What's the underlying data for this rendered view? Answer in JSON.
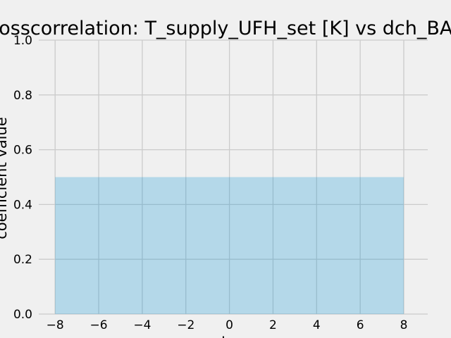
{
  "chart_data": {
    "type": "area",
    "title": "Crosscorrelation: T_supply_UFH_set [K] vs dch_BAT [W]",
    "xlabel": "lag",
    "ylabel": "coefficient value",
    "x": [
      -8,
      8
    ],
    "y": [
      0.5,
      0.5
    ],
    "xlim": [
      -8.75,
      9.1
    ],
    "ylim": [
      0,
      1
    ],
    "xticks": [
      "−8",
      "−6",
      "−4",
      "−2",
      "0",
      "2",
      "4",
      "6",
      "8"
    ],
    "yticks": [
      "0.0",
      "0.2",
      "0.4",
      "0.6",
      "0.8",
      "1.0"
    ],
    "grid": true
  },
  "colors": {
    "background": "#f0f0f0",
    "grid": "#cbcbcb",
    "fill": "#008fd5",
    "text": "#000000"
  }
}
